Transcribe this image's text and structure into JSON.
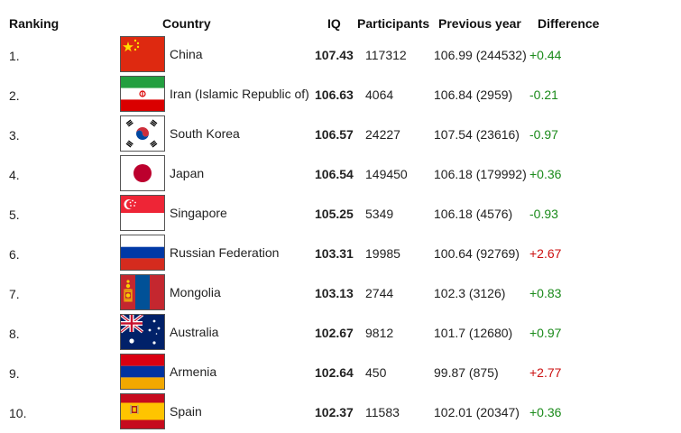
{
  "headers": {
    "ranking": "Ranking",
    "country": "Country",
    "iq": "IQ",
    "participants": "Participants",
    "previous_year": "Previous year",
    "difference": "Difference"
  },
  "rows": [
    {
      "rank": "1.",
      "country": "China",
      "flag": "china-flag",
      "iq": "107.43",
      "participants": "117312",
      "previous": "106.99 (244532)",
      "diff": "+0.44",
      "diff_color": "#1a8a1a"
    },
    {
      "rank": "2.",
      "country": "Iran (Islamic Republic of)",
      "flag": "iran-flag",
      "iq": "106.63",
      "participants": "4064",
      "previous": "106.84 (2959)",
      "diff": "-0.21",
      "diff_color": "#1a8a1a"
    },
    {
      "rank": "3.",
      "country": "South Korea",
      "flag": "south-korea-flag",
      "iq": "106.57",
      "participants": "24227",
      "previous": "107.54 (23616)",
      "diff": "-0.97",
      "diff_color": "#1a8a1a"
    },
    {
      "rank": "4.",
      "country": "Japan",
      "flag": "japan-flag",
      "iq": "106.54",
      "participants": "149450",
      "previous": "106.18 (179992)",
      "diff": "+0.36",
      "diff_color": "#1a8a1a"
    },
    {
      "rank": "5.",
      "country": "Singapore",
      "flag": "singapore-flag",
      "iq": "105.25",
      "participants": "5349",
      "previous": "106.18 (4576)",
      "diff": "-0.93",
      "diff_color": "#1a8a1a"
    },
    {
      "rank": "6.",
      "country": "Russian Federation",
      "flag": "russia-flag",
      "iq": "103.31",
      "participants": "19985",
      "previous": "100.64 (92769)",
      "diff": "+2.67",
      "diff_color": "#cc1111"
    },
    {
      "rank": "7.",
      "country": "Mongolia",
      "flag": "mongolia-flag",
      "iq": "103.13",
      "participants": "2744",
      "previous": "102.3 (3126)",
      "diff": "+0.83",
      "diff_color": "#1a8a1a"
    },
    {
      "rank": "8.",
      "country": "Australia",
      "flag": "australia-flag",
      "iq": "102.67",
      "participants": "9812",
      "previous": "101.7 (12680)",
      "diff": "+0.97",
      "diff_color": "#1a8a1a"
    },
    {
      "rank": "9.",
      "country": "Armenia",
      "flag": "armenia-flag",
      "iq": "102.64",
      "participants": "450",
      "previous": "99.87 (875)",
      "diff": "+2.77",
      "diff_color": "#cc1111"
    },
    {
      "rank": "10.",
      "country": "Spain",
      "flag": "spain-flag",
      "iq": "102.37",
      "participants": "11583",
      "previous": "102.01 (20347)",
      "diff": "+0.36",
      "diff_color": "#1a8a1a"
    }
  ]
}
